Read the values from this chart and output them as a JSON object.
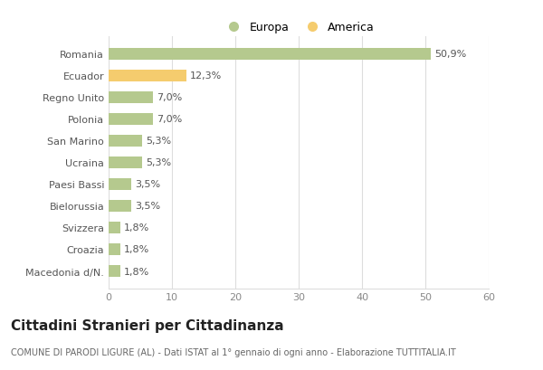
{
  "categories": [
    "Romania",
    "Ecuador",
    "Regno Unito",
    "Polonia",
    "San Marino",
    "Ucraina",
    "Paesi Bassi",
    "Bielorussia",
    "Svizzera",
    "Croazia",
    "Macedonia d/N."
  ],
  "values": [
    50.9,
    12.3,
    7.0,
    7.0,
    5.3,
    5.3,
    3.5,
    3.5,
    1.8,
    1.8,
    1.8
  ],
  "labels": [
    "50,9%",
    "12,3%",
    "7,0%",
    "7,0%",
    "5,3%",
    "5,3%",
    "3,5%",
    "3,5%",
    "1,8%",
    "1,8%",
    "1,8%"
  ],
  "continents": [
    "Europa",
    "America",
    "Europa",
    "Europa",
    "Europa",
    "Europa",
    "Europa",
    "Europa",
    "Europa",
    "Europa",
    "Europa"
  ],
  "color_europa": "#b5c98e",
  "color_america": "#f5cc6e",
  "legend_europa": "Europa",
  "legend_america": "America",
  "xlim": [
    0,
    60
  ],
  "xticks": [
    0,
    10,
    20,
    30,
    40,
    50,
    60
  ],
  "title": "Cittadini Stranieri per Cittadinanza",
  "subtitle": "COMUNE DI PARODI LIGURE (AL) - Dati ISTAT al 1° gennaio di ogni anno - Elaborazione TUTTITALIA.IT",
  "bg_color": "#ffffff",
  "grid_color": "#dddddd",
  "bar_height": 0.55,
  "label_fontsize": 8,
  "tick_fontsize": 8,
  "title_fontsize": 11,
  "subtitle_fontsize": 7,
  "legend_fontsize": 9
}
